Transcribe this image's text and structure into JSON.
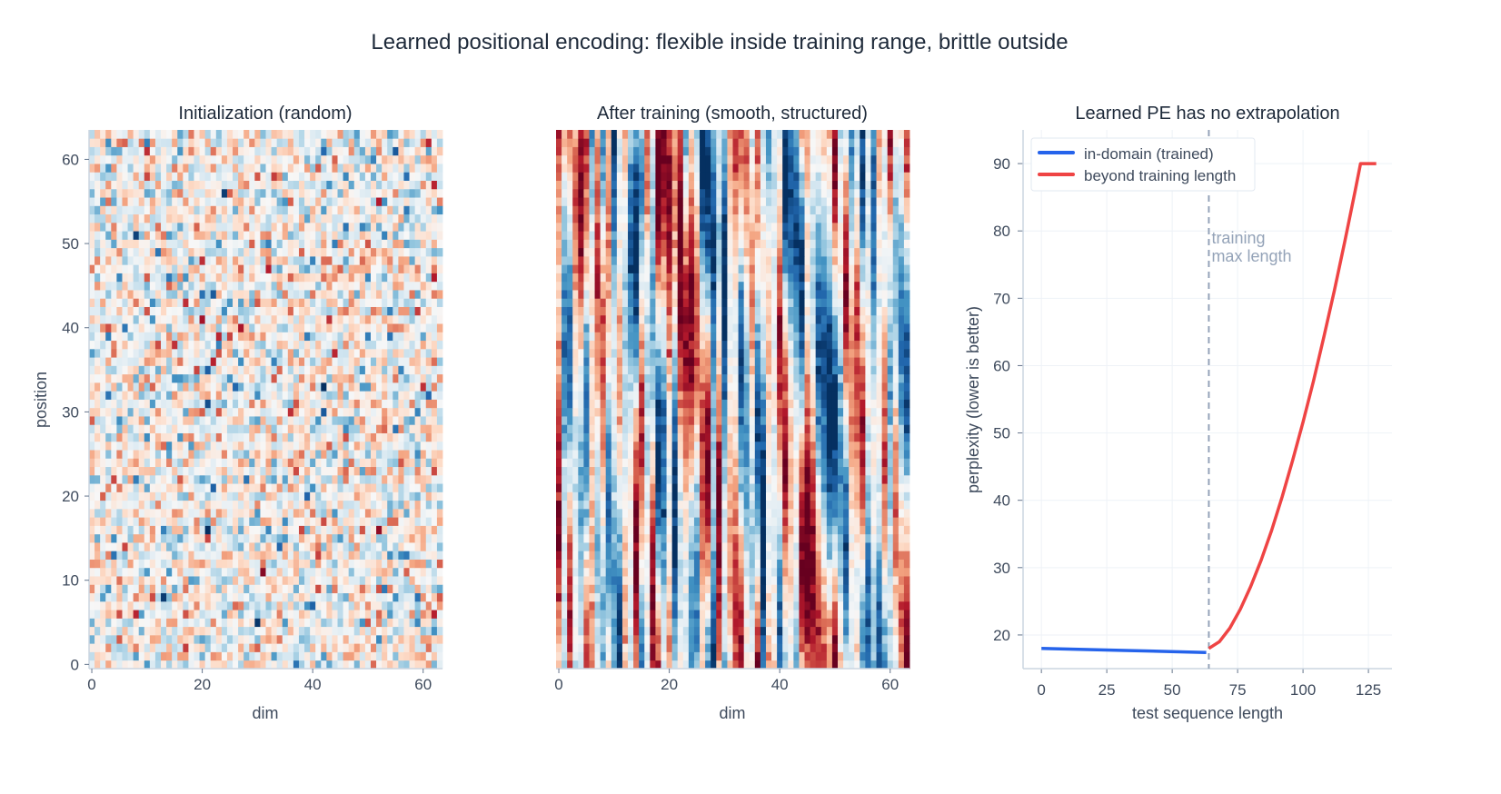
{
  "suptitle": "Learned positional encoding: flexible inside training range, brittle outside",
  "chart_data": [
    {
      "type": "heatmap",
      "title": "Initialization (random)",
      "xlabel": "dim",
      "ylabel": "position",
      "rows": 64,
      "cols": 64,
      "colormap": "RdBu_r",
      "pattern": "random noise",
      "xticks": [
        "0",
        "20",
        "40",
        "60"
      ],
      "yticks": [
        "0",
        "10",
        "20",
        "30",
        "40",
        "50",
        "60"
      ]
    },
    {
      "type": "heatmap",
      "title": "After training (smooth, structured)",
      "xlabel": "dim",
      "ylabel": "",
      "rows": 64,
      "cols": 64,
      "colormap": "RdBu_r",
      "pattern": "smooth sinusoidal stripes with diagonal bands",
      "xticks": [
        "0",
        "20",
        "40",
        "60"
      ],
      "yticks": []
    },
    {
      "type": "line",
      "title": "Learned PE has no extrapolation",
      "xlabel": "test sequence length",
      "ylabel": "perplexity (lower is better)",
      "xlim": [
        -7,
        134
      ],
      "ylim": [
        15,
        95
      ],
      "grid": true,
      "legend": "top-left",
      "xticks": [
        "0",
        "25",
        "50",
        "75",
        "100",
        "125"
      ],
      "yticks": [
        "20",
        "30",
        "40",
        "50",
        "60",
        "70",
        "80",
        "90"
      ],
      "series": [
        {
          "name": "in-domain (trained)",
          "color": "#2563eb",
          "points": [
            [
              0,
              18.0
            ],
            [
              16,
              17.85
            ],
            [
              32,
              17.7
            ],
            [
              48,
              17.55
            ],
            [
              63,
              17.4
            ]
          ]
        },
        {
          "name": "beyond training length",
          "color": "#ef4444",
          "points": [
            [
              64,
              18.0
            ],
            [
              68,
              19.0
            ],
            [
              72,
              21.0
            ],
            [
              76,
              23.8
            ],
            [
              80,
              27.2
            ],
            [
              84,
              31.1
            ],
            [
              88,
              35.5
            ],
            [
              92,
              40.5
            ],
            [
              96,
              45.9
            ],
            [
              100,
              51.6
            ],
            [
              104,
              57.7
            ],
            [
              108,
              64.3
            ],
            [
              112,
              71.2
            ],
            [
              116,
              78.5
            ],
            [
              120,
              86.1
            ],
            [
              122,
              90.0
            ],
            [
              128,
              90.0
            ]
          ]
        }
      ],
      "vline": {
        "x": 64,
        "color": "#94a3b8",
        "label_line1": "training",
        "label_line2": "max length"
      }
    }
  ]
}
